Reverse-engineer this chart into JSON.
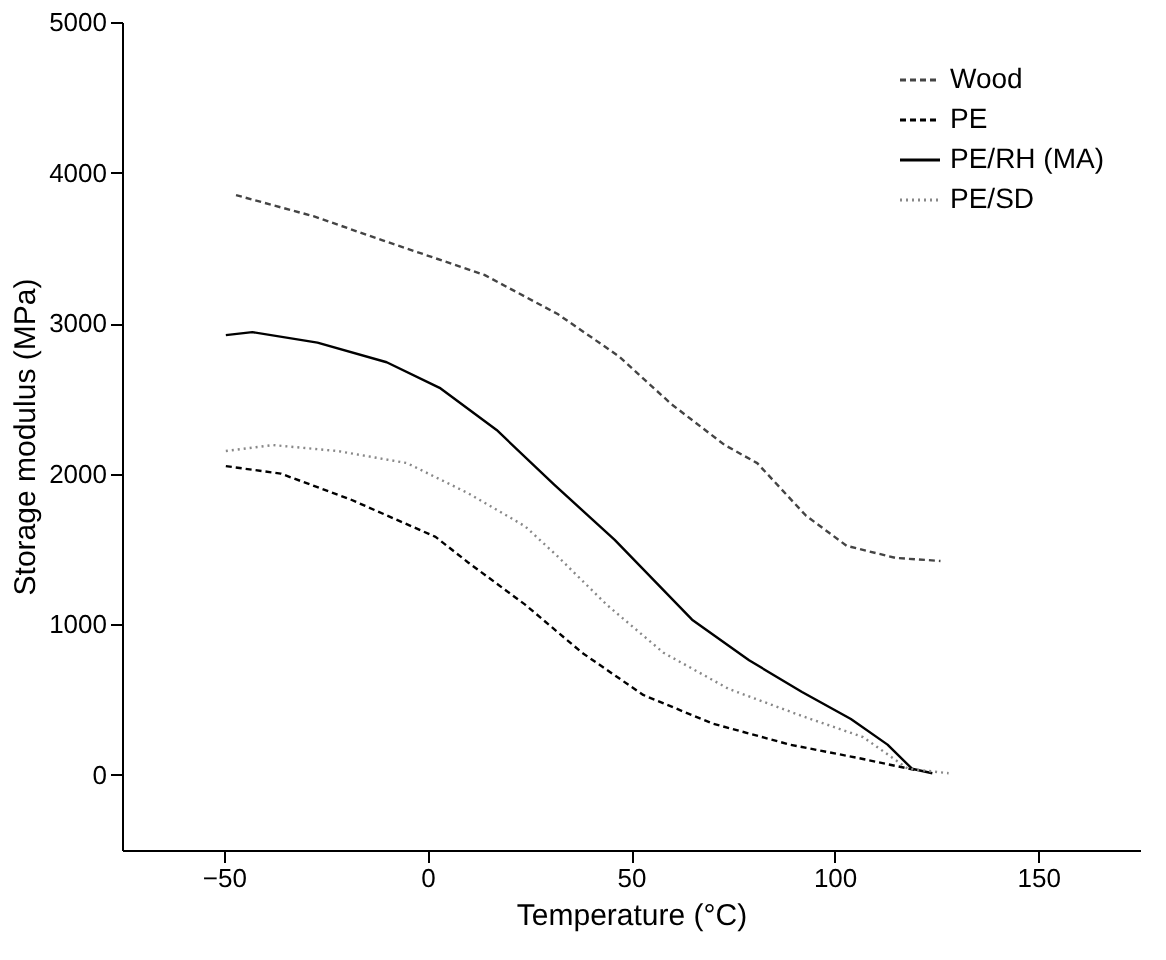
{
  "chart_data": {
    "type": "line",
    "xlabel": "Temperature (°C)",
    "ylabel": "Storage modulus (MPa)",
    "xlim": [
      -75,
      175
    ],
    "xticks": [
      -50,
      0,
      50,
      100,
      150
    ],
    "ylim": [
      -500,
      5000
    ],
    "yticks": [
      0,
      1000,
      2000,
      3000,
      4000,
      5000
    ],
    "grid": false,
    "legend": "top right",
    "marker": "none",
    "series": [
      {
        "name": "Wood",
        "color": "#444444",
        "line_style": "dashed",
        "x": [
          -47,
          -28,
          -11,
          14,
          32,
          47,
          60,
          73,
          81,
          93,
          103,
          115,
          126
        ],
        "values": [
          3850,
          3710,
          3550,
          3320,
          3060,
          2780,
          2460,
          2190,
          2070,
          1720,
          1520,
          1440,
          1420
        ]
      },
      {
        "name": "PE",
        "color": "#000000",
        "line_style": "dashed",
        "x": [
          -49.5,
          -36,
          -19,
          2,
          10,
          24,
          38,
          53,
          70,
          89,
          106,
          120
        ],
        "values": [
          2050,
          2000,
          1830,
          1580,
          1410,
          1130,
          810,
          530,
          340,
          200,
          110,
          30
        ]
      },
      {
        "name": "PE/RH (MA)",
        "color": "#000000",
        "line_style": "solid",
        "x": [
          -49.5,
          -43,
          -27,
          -10,
          3,
          17,
          31,
          46,
          65,
          79,
          92,
          104,
          113,
          119,
          124
        ],
        "values": [
          2920,
          2940,
          2870,
          2740,
          2570,
          2290,
          1930,
          1560,
          1030,
          760,
          550,
          370,
          200,
          40,
          10
        ]
      },
      {
        "name": "PE/SD",
        "color": "#888888",
        "line_style": "dotted",
        "x": [
          -49.5,
          -38,
          -22,
          -5,
          10,
          24,
          32,
          44,
          58,
          74,
          92,
          107,
          118,
          128
        ],
        "values": [
          2150,
          2190,
          2150,
          2070,
          1870,
          1650,
          1450,
          1130,
          810,
          570,
          390,
          250,
          40,
          10
        ]
      }
    ]
  }
}
